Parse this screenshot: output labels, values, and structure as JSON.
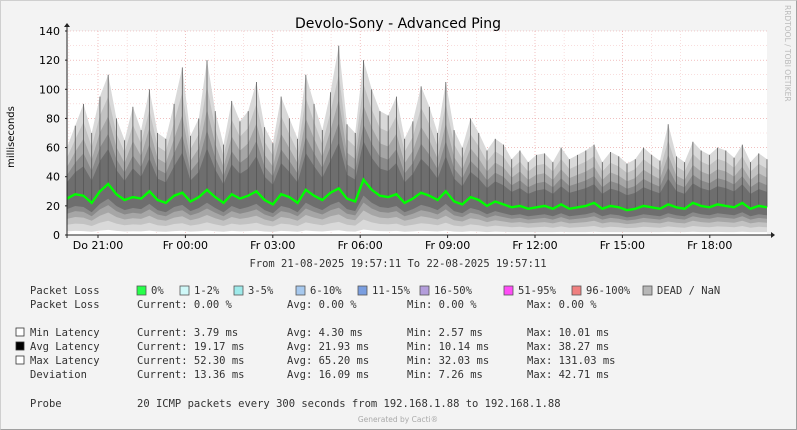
{
  "chart_data": {
    "type": "area",
    "title": "Devolo-Sony - Advanced Ping",
    "ylabel": "milliseconds",
    "ylim": [
      0,
      140
    ],
    "yticks": [
      0,
      20,
      40,
      60,
      80,
      100,
      120,
      140
    ],
    "xtick_labels": [
      "Do 21:00",
      "Fr 00:00",
      "Fr 03:00",
      "Fr 06:00",
      "Fr 09:00",
      "Fr 12:00",
      "Fr 15:00",
      "Fr 18:00"
    ],
    "x_range": [
      "21-08-2025 19:57:11",
      "22-08-2025 19:57:11"
    ],
    "series": [
      {
        "name": "Avg Latency",
        "color": "#00ff00",
        "values": [
          25,
          28,
          27,
          22,
          30,
          35,
          28,
          24,
          26,
          25,
          30,
          24,
          22,
          27,
          29,
          23,
          26,
          31,
          26,
          22,
          28,
          25,
          27,
          30,
          24,
          21,
          28,
          26,
          22,
          31,
          27,
          24,
          29,
          32,
          25,
          23,
          38,
          31,
          27,
          26,
          28,
          22,
          25,
          29,
          27,
          24,
          30,
          23,
          21,
          26,
          24,
          20,
          23,
          21,
          19,
          20,
          18,
          19,
          20,
          18,
          21,
          18,
          19,
          20,
          22,
          18,
          20,
          19,
          17,
          18,
          20,
          19,
          18,
          21,
          19,
          18,
          22,
          20,
          19,
          21,
          20,
          19,
          22,
          18,
          20,
          19
        ]
      },
      {
        "name": "Max Latency",
        "color": "#bbbbbb",
        "values": [
          60,
          75,
          90,
          70,
          95,
          110,
          80,
          65,
          88,
          72,
          100,
          70,
          66,
          90,
          115,
          68,
          80,
          120,
          85,
          62,
          92,
          78,
          85,
          105,
          74,
          63,
          95,
          80,
          66,
          110,
          90,
          72,
          98,
          130,
          76,
          70,
          120,
          100,
          85,
          82,
          95,
          66,
          78,
          102,
          88,
          70,
          105,
          72,
          60,
          80,
          70,
          58,
          66,
          62,
          52,
          58,
          50,
          55,
          56,
          50,
          60,
          52,
          55,
          58,
          62,
          50,
          57,
          54,
          49,
          52,
          60,
          55,
          51,
          76,
          54,
          50,
          64,
          58,
          55,
          60,
          58,
          53,
          62,
          50,
          56,
          52
        ]
      }
    ],
    "axis_text": {
      "watermark": "RRDTOOL / TOBI OETIKER"
    }
  },
  "title": "Devolo-Sony - Advanced Ping",
  "ylabel": "milliseconds",
  "range_text": "From 21-08-2025 19:57:11 To 22-08-2025 19:57:11",
  "watermark": "RRDTOOL / TOBI OETIKER",
  "footer": "Generated by Cacti®",
  "legend": {
    "packet_loss_label": "Packet Loss",
    "loss_items": [
      {
        "label": "0%",
        "color": "#26ff4a"
      },
      {
        "label": "1-2%",
        "color": "#cff8f8"
      },
      {
        "label": "3-5%",
        "color": "#9eeaea"
      },
      {
        "label": "6-10%",
        "color": "#a7c9ee"
      },
      {
        "label": "11-15%",
        "color": "#7a9ee0"
      },
      {
        "label": "16-50%",
        "color": "#b39ddb"
      },
      {
        "label": "51-95%",
        "color": "#ff4cf6"
      },
      {
        "label": "96-100%",
        "color": "#f08080"
      },
      {
        "label": "DEAD / NaN",
        "color": "#b7b7b7"
      }
    ],
    "stats_rows": [
      {
        "label": "Packet Loss",
        "swatch": null,
        "current": "Current:     0.00 %",
        "avg": "Avg:     0.00 %",
        "min": "Min:     0.00 %",
        "max": "Max:     0.00 %"
      },
      {
        "label": "Min Latency",
        "swatch": "#ffffff",
        "current": "Current:    3.79 ms",
        "avg": "Avg:    4.30 ms",
        "min": "Min:    2.57 ms",
        "max": "Max:   10.01 ms"
      },
      {
        "label": "Avg Latency",
        "swatch": "#000000",
        "current": "Current:   19.17 ms",
        "avg": "Avg:   21.93 ms",
        "min": "Min:   10.14 ms",
        "max": "Max:   38.27 ms"
      },
      {
        "label": "Max Latency",
        "swatch": "#ffffff",
        "current": "Current:   52.30 ms",
        "avg": "Avg:   65.20 ms",
        "min": "Min:   32.03 ms",
        "max": "Max:  131.03 ms"
      },
      {
        "label": "Deviation",
        "swatch": null,
        "current": "Current:   13.36 ms",
        "avg": "Avg:   16.09 ms",
        "min": "Min:    7.26 ms",
        "max": "Max:   42.71 ms"
      }
    ],
    "probe_label": "Probe",
    "probe_text": "20 ICMP packets every 300 seconds from 192.168.1.88 to 192.168.1.88"
  }
}
